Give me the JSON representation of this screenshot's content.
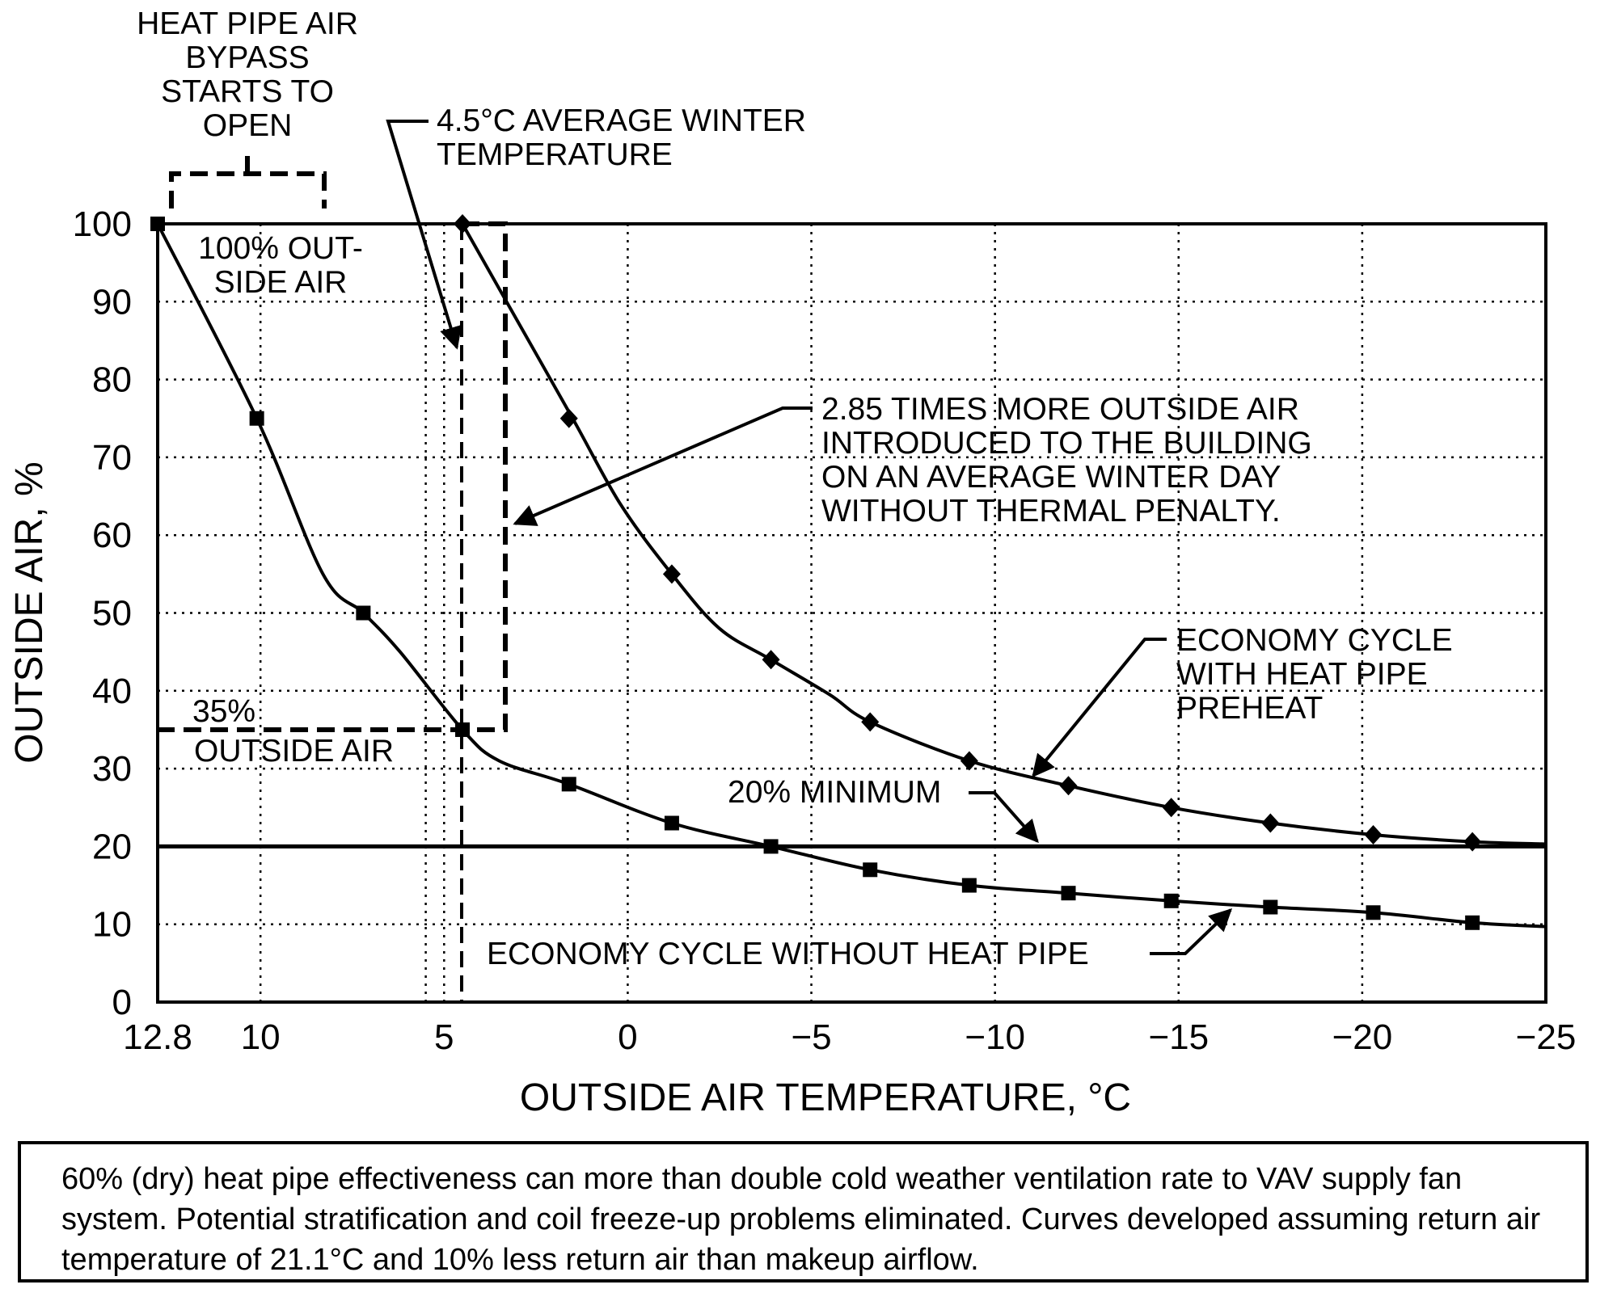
{
  "chart_data": {
    "type": "line",
    "title": "",
    "xlabel": "OUTSIDE AIR TEMPERATURE, °C",
    "ylabel": "OUTSIDE AIR, %",
    "xlim": [
      12.8,
      -25
    ],
    "ylim": [
      0,
      100
    ],
    "x_ticks": [
      "12.8",
      "10",
      "5",
      "0",
      "−5",
      "−10",
      "−15",
      "−20",
      "−25"
    ],
    "y_ticks": [
      "0",
      "10",
      "20",
      "30",
      "40",
      "50",
      "60",
      "70",
      "80",
      "90",
      "100"
    ],
    "grid": true,
    "series": [
      {
        "name": "ECONOMY CYCLE WITH HEAT PIPE PREHEAT",
        "marker": "diamond",
        "curve": [
          [
            4.5,
            100
          ],
          [
            3.3,
            90
          ],
          [
            1.5,
            75
          ],
          [
            0.2,
            64
          ],
          [
            -1.2,
            55
          ],
          [
            -2.5,
            48
          ],
          [
            -3.9,
            44
          ],
          [
            -5.5,
            39.5
          ],
          [
            -6.6,
            36
          ],
          [
            -9.3,
            31
          ],
          [
            -12.0,
            27.8
          ],
          [
            -14.8,
            25
          ],
          [
            -17.5,
            23
          ],
          [
            -20.3,
            21.5
          ],
          [
            -23.0,
            20.6
          ],
          [
            -25,
            20.3
          ]
        ],
        "points": [
          [
            4.5,
            100
          ],
          [
            1.6,
            75
          ],
          [
            -1.2,
            55
          ],
          [
            -3.9,
            44
          ],
          [
            -6.6,
            36
          ],
          [
            -9.3,
            31
          ],
          [
            -12.0,
            27.8
          ],
          [
            -14.8,
            25
          ],
          [
            -17.5,
            23
          ],
          [
            -20.3,
            21.5
          ],
          [
            -23.0,
            20.6
          ]
        ]
      },
      {
        "name": "ECONOMY CYCLE WITHOUT HEAT PIPE",
        "marker": "square",
        "curve": [
          [
            12.8,
            100
          ],
          [
            10.1,
            75
          ],
          [
            8.3,
            55
          ],
          [
            7.2,
            50
          ],
          [
            6.2,
            45
          ],
          [
            4.5,
            35
          ],
          [
            3.5,
            31
          ],
          [
            1.6,
            28
          ],
          [
            -1.2,
            23
          ],
          [
            -3.9,
            20
          ],
          [
            -6.6,
            17
          ],
          [
            -9.3,
            15
          ],
          [
            -12.0,
            14
          ],
          [
            -14.8,
            13
          ],
          [
            -17.5,
            12.2
          ],
          [
            -20.3,
            11.5
          ],
          [
            -23.0,
            10.2
          ],
          [
            -25,
            9.7
          ]
        ],
        "points": [
          [
            12.8,
            100
          ],
          [
            10.1,
            75
          ],
          [
            7.2,
            50
          ],
          [
            4.5,
            35
          ],
          [
            1.6,
            28
          ],
          [
            -1.2,
            23
          ],
          [
            -3.9,
            20
          ],
          [
            -6.6,
            17
          ],
          [
            -9.3,
            15
          ],
          [
            -12.0,
            14
          ],
          [
            -14.8,
            13
          ],
          [
            -17.5,
            12.2
          ],
          [
            -20.3,
            11.5
          ],
          [
            -23.0,
            10.2
          ]
        ]
      },
      {
        "name": "20% MINIMUM",
        "marker": "none",
        "curve": [
          [
            12.8,
            20
          ],
          [
            -25,
            20
          ]
        ]
      }
    ],
    "annotations": {
      "bypass": [
        "HEAT PIPE AIR",
        "BYPASS",
        "STARTS TO",
        "OPEN"
      ],
      "avg_winter": [
        "4.5°C AVERAGE WINTER",
        "TEMPERATURE"
      ],
      "outside_100": [
        "100% OUT-",
        "SIDE AIR"
      ],
      "times_more": [
        "2.85 TIMES MORE OUTSIDE AIR",
        "INTRODUCED TO THE BUILDING",
        "ON AN AVERAGE WINTER DAY",
        "WITHOUT THERMAL PENALTY."
      ],
      "econ_with": [
        "ECONOMY CYCLE",
        "WITH HEAT PIPE",
        "PREHEAT"
      ],
      "outside_35": [
        "35%",
        "OUTSIDE AIR"
      ],
      "minimum": "20% MINIMUM",
      "econ_without": "ECONOMY CYCLE WITHOUT HEAT PIPE"
    }
  },
  "caption": "60% (dry) heat pipe effectiveness can more than double cold weather ventilation rate to VAV supply fan system. Potential stratification and coil freeze-up problems eliminated. Curves developed assuming return air temperature of 21.1°C and 10% less return air than makeup airflow."
}
